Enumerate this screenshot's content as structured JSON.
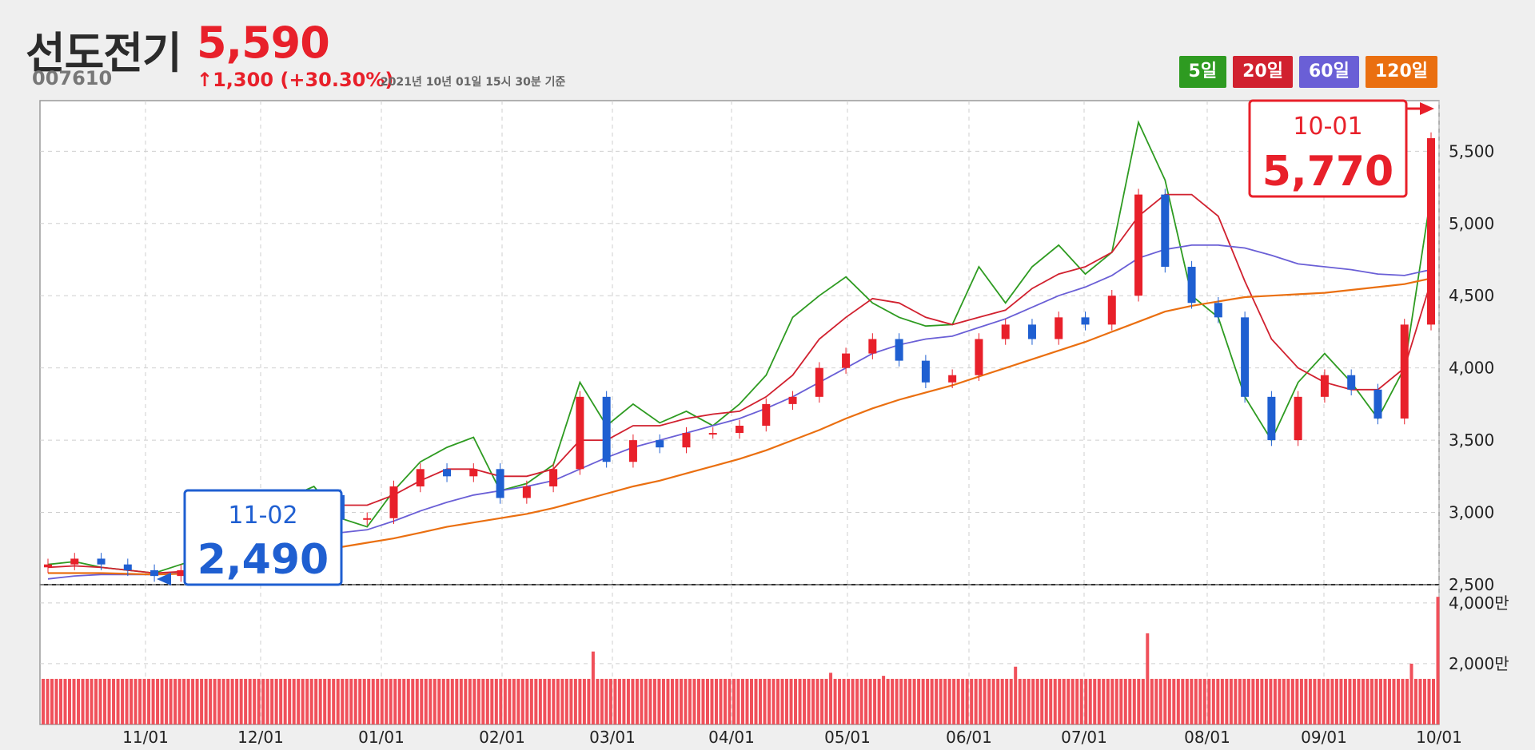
{
  "header": {
    "name": "선도전기",
    "price": "5,590",
    "code": "007610",
    "change_arrow": "↑",
    "change_text": "1,300 (+30.30%)",
    "asof": "2021년 10년 01일 15시 30분 기준"
  },
  "legend": [
    {
      "label": "5일",
      "color": "#2e9b21"
    },
    {
      "label": "20일",
      "color": "#d1212f"
    },
    {
      "label": "60일",
      "color": "#6a5fd6"
    },
    {
      "label": "120일",
      "color": "#ea6f10"
    }
  ],
  "colors": {
    "up": "#e8202a",
    "down": "#1f5fd1",
    "volume": "#f0505a",
    "grid": "#cfcfcf",
    "low_box": "#1f5fd1",
    "high_box": "#e8202a"
  },
  "callouts": {
    "low": {
      "date": "11-02",
      "value": "2,490"
    },
    "high": {
      "date": "10-01",
      "value": "5,770"
    }
  },
  "chart_data": {
    "type": "candlestick",
    "price_axis": {
      "ticks": [
        "2,500",
        "3,000",
        "3,500",
        "4,000",
        "4,500",
        "5,000",
        "5,500"
      ],
      "tick_values": [
        2500,
        3000,
        3500,
        4000,
        4500,
        5000,
        5500
      ],
      "range": [
        2500,
        5850
      ]
    },
    "volume_axis": {
      "ticks": [
        "2,000만",
        "4,000만"
      ],
      "tick_values": [
        2000,
        4000
      ],
      "unit": "만"
    },
    "x_labels": [
      "11/01",
      "12/01",
      "01/01",
      "02/01",
      "03/01",
      "04/01",
      "05/01",
      "06/01",
      "07/01",
      "08/01",
      "09/01",
      "10/01"
    ],
    "close_series": [
      [
        "2020-10-05",
        2640
      ],
      [
        "2020-10-12",
        2680
      ],
      [
        "2020-10-19",
        2640
      ],
      [
        "2020-10-26",
        2600
      ],
      [
        "2020-11-02",
        2560
      ],
      [
        "2020-11-09",
        2600
      ],
      [
        "2020-11-16",
        2700
      ],
      [
        "2020-11-23",
        2820
      ],
      [
        "2020-11-30",
        2900
      ],
      [
        "2020-12-07",
        3000
      ],
      [
        "2020-12-14",
        3120
      ],
      [
        "2020-12-21",
        2950
      ],
      [
        "2020-12-28",
        2960
      ],
      [
        "2021-01-04",
        3180
      ],
      [
        "2021-01-11",
        3300
      ],
      [
        "2021-01-18",
        3250
      ],
      [
        "2021-01-25",
        3300
      ],
      [
        "2021-02-01",
        3100
      ],
      [
        "2021-02-08",
        3180
      ],
      [
        "2021-02-15",
        3300
      ],
      [
        "2021-02-22",
        3800
      ],
      [
        "2021-03-01",
        3350
      ],
      [
        "2021-03-08",
        3500
      ],
      [
        "2021-03-15",
        3450
      ],
      [
        "2021-03-22",
        3550
      ],
      [
        "2021-03-29",
        3550
      ],
      [
        "2021-04-05",
        3600
      ],
      [
        "2021-04-12",
        3750
      ],
      [
        "2021-04-19",
        3800
      ],
      [
        "2021-04-26",
        4000
      ],
      [
        "2021-05-03",
        4100
      ],
      [
        "2021-05-10",
        4200
      ],
      [
        "2021-05-17",
        4050
      ],
      [
        "2021-05-24",
        3900
      ],
      [
        "2021-05-31",
        3950
      ],
      [
        "2021-06-07",
        4200
      ],
      [
        "2021-06-14",
        4300
      ],
      [
        "2021-06-21",
        4200
      ],
      [
        "2021-06-28",
        4350
      ],
      [
        "2021-07-05",
        4300
      ],
      [
        "2021-07-12",
        4500
      ],
      [
        "2021-07-19",
        5200
      ],
      [
        "2021-07-26",
        4700
      ],
      [
        "2021-08-02",
        4450
      ],
      [
        "2021-08-09",
        4350
      ],
      [
        "2021-08-16",
        3800
      ],
      [
        "2021-08-23",
        3500
      ],
      [
        "2021-08-30",
        3800
      ],
      [
        "2021-09-06",
        3950
      ],
      [
        "2021-09-13",
        3850
      ],
      [
        "2021-09-20",
        3650
      ],
      [
        "2021-09-27",
        4300
      ],
      [
        "2021-10-01",
        5590
      ]
    ],
    "ma_series": [
      {
        "name": "5일",
        "values": [
          2640,
          2660,
          2620,
          2600,
          2580,
          2640,
          2700,
          2860,
          2950,
          3100,
          3180,
          2960,
          2900,
          3150,
          3350,
          3450,
          3520,
          3150,
          3200,
          3330,
          3900,
          3600,
          3750,
          3620,
          3700,
          3600,
          3750,
          3950,
          4350,
          4500,
          4630,
          4450,
          4350,
          4290,
          4300,
          4700,
          4450,
          4700,
          4850,
          4650,
          4800,
          5700,
          5300,
          4500,
          4350,
          3800,
          3500,
          3900,
          4100,
          3900,
          3650,
          4000,
          5200
        ]
      },
      {
        "name": "20일",
        "values": [
          2620,
          2630,
          2620,
          2600,
          2580,
          2590,
          2620,
          2700,
          2800,
          2900,
          3000,
          3050,
          3050,
          3120,
          3220,
          3300,
          3300,
          3250,
          3250,
          3300,
          3500,
          3500,
          3600,
          3600,
          3650,
          3680,
          3700,
          3800,
          3950,
          4200,
          4350,
          4480,
          4450,
          4350,
          4300,
          4350,
          4400,
          4550,
          4650,
          4700,
          4800,
          5050,
          5200,
          5200,
          5050,
          4600,
          4200,
          4000,
          3900,
          3850,
          3850,
          4000,
          4600
        ]
      },
      {
        "name": "60일",
        "values": [
          2540,
          2560,
          2570,
          2570,
          2570,
          2580,
          2600,
          2640,
          2700,
          2760,
          2820,
          2860,
          2880,
          2940,
          3010,
          3070,
          3120,
          3150,
          3180,
          3220,
          3300,
          3380,
          3450,
          3500,
          3550,
          3600,
          3650,
          3720,
          3800,
          3900,
          4000,
          4100,
          4160,
          4200,
          4220,
          4280,
          4340,
          4420,
          4500,
          4560,
          4640,
          4760,
          4820,
          4850,
          4850,
          4830,
          4780,
          4720,
          4700,
          4680,
          4650,
          4640,
          4680
        ]
      },
      {
        "name": "120일",
        "values": [
          2580,
          2580,
          2580,
          2575,
          2570,
          2575,
          2580,
          2600,
          2640,
          2680,
          2720,
          2760,
          2790,
          2820,
          2860,
          2900,
          2930,
          2960,
          2990,
          3030,
          3080,
          3130,
          3180,
          3220,
          3270,
          3320,
          3370,
          3430,
          3500,
          3570,
          3650,
          3720,
          3780,
          3830,
          3880,
          3940,
          4000,
          4060,
          4120,
          4180,
          4250,
          4320,
          4390,
          4430,
          4460,
          4490,
          4500,
          4510,
          4520,
          4540,
          4560,
          4580,
          4620
        ]
      }
    ],
    "volume_series": [
      1.5,
      1.5,
      1.5,
      1.5,
      1.5,
      1.5,
      1.5,
      1.5,
      1.5,
      1.5,
      1.5,
      1.5,
      1.5,
      1.5,
      1.5,
      1.5,
      1.5,
      1.5,
      1.5,
      1.5,
      2.4,
      1.5,
      1.5,
      1.5,
      1.5,
      1.5,
      1.5,
      1.5,
      1.5,
      1.7,
      1.5,
      1.6,
      1.5,
      1.5,
      1.5,
      1.5,
      1.9,
      1.5,
      1.5,
      1.5,
      1.5,
      3.0,
      1.5,
      1.5,
      1.5,
      1.5,
      1.5,
      1.5,
      1.5,
      1.5,
      1.5,
      2.0,
      4.2
    ]
  }
}
